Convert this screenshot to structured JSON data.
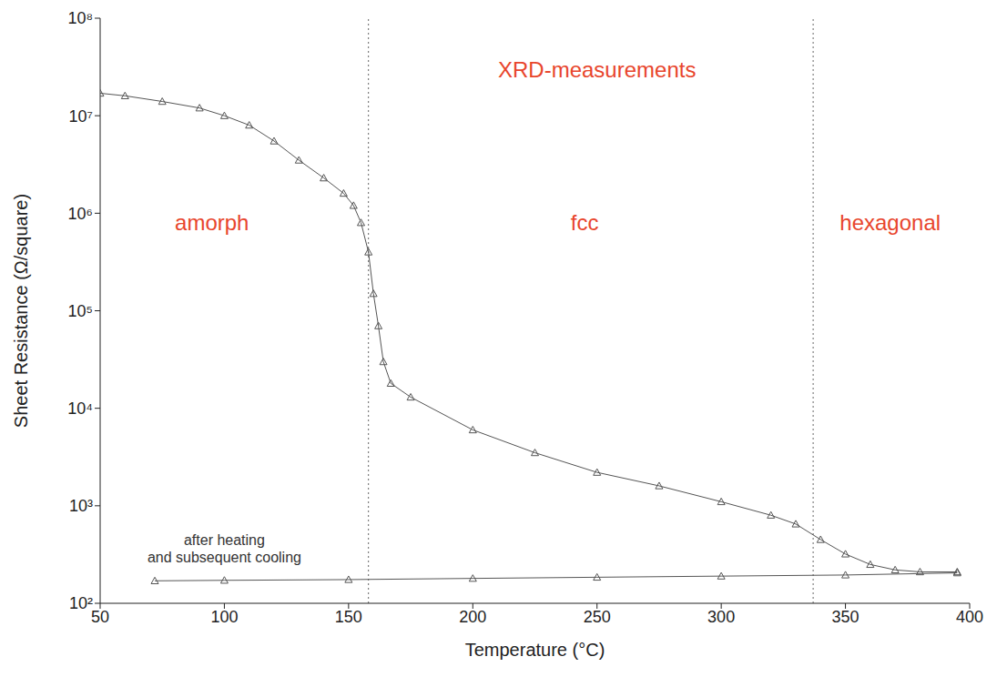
{
  "chart_data": {
    "type": "scatter",
    "x_label": "Temperature (°C)",
    "y_label": "Sheet Resistance (Ω/square)",
    "log": "y",
    "xlim": [
      50,
      400
    ],
    "ylim": [
      100,
      100000000
    ],
    "xticks": [
      50,
      100,
      150,
      200,
      250,
      300,
      350,
      400
    ],
    "yticks": [
      {
        "value": 100,
        "label": "10²"
      },
      {
        "value": 1000,
        "label": "10³"
      },
      {
        "value": 10000,
        "label": "10⁴"
      },
      {
        "value": 100000,
        "label": "10⁵"
      },
      {
        "value": 1000000,
        "label": "10⁶"
      },
      {
        "value": 10000000,
        "label": "10⁷"
      },
      {
        "value": 100000000,
        "label": "10⁸"
      }
    ],
    "grid": false,
    "series": [
      {
        "color": "#555555",
        "marker": "triangle",
        "line_style": "solid",
        "x": [
          50,
          60,
          75,
          90,
          100,
          110,
          120,
          130,
          140,
          148,
          152,
          155,
          158,
          160,
          162,
          164,
          167,
          175,
          200,
          225,
          250,
          275,
          300,
          320,
          330,
          340,
          350,
          360,
          370,
          380,
          395
        ],
        "values": [
          17000000,
          16000000,
          14000000,
          12000000,
          10000000,
          8000000,
          5500000,
          3500000,
          2300000,
          1600000,
          1200000,
          800000,
          400000,
          150000,
          70000,
          30000,
          18000,
          13000,
          6000,
          3500,
          2200,
          1600,
          1100,
          800,
          650,
          450,
          320,
          250,
          220,
          210,
          210
        ]
      },
      {
        "color": "#555555",
        "marker": "triangle",
        "line_style": "solid",
        "x": [
          72,
          100,
          150,
          200,
          250,
          300,
          350,
          395
        ],
        "values": [
          170,
          172,
          175,
          180,
          185,
          190,
          195,
          205
        ]
      }
    ],
    "xrd_lines": [
      158,
      337
    ],
    "annotations": [
      {
        "text": "XRD-measurements",
        "x": 250,
        "y": 30000000,
        "color": "#e8452c"
      },
      {
        "text": "amorph",
        "x": 95,
        "y": 800000,
        "color": "#e8452c"
      },
      {
        "text": "fcc",
        "x": 245,
        "y": 800000,
        "color": "#e8452c"
      },
      {
        "text": "hexagonal",
        "x": 368,
        "y": 800000,
        "color": "#e8452c"
      },
      {
        "text": "after heating",
        "x": 100,
        "y": 450,
        "color": "#333333"
      },
      {
        "text": "and subsequent cooling",
        "x": 100,
        "y": 300,
        "color": "#333333"
      }
    ]
  }
}
